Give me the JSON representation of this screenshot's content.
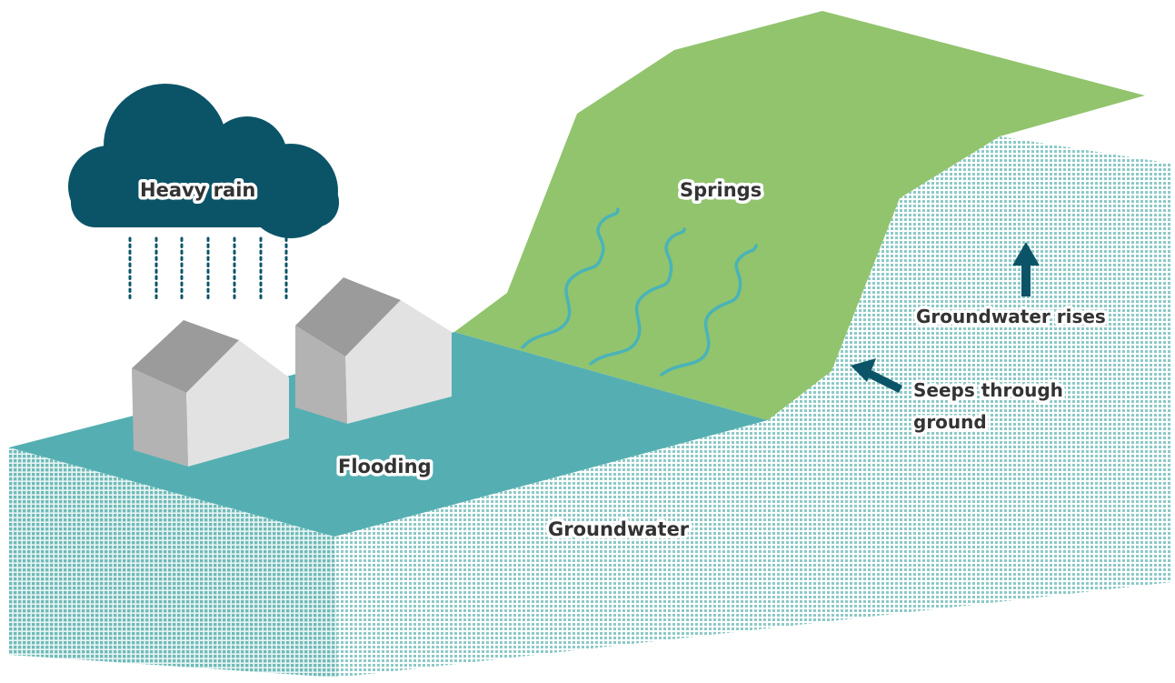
{
  "labels": {
    "heavy_rain": "Heavy rain",
    "springs": "Springs",
    "flooding": "Flooding",
    "groundwater": "Groundwater",
    "groundwater_rises": "Groundwater rises",
    "seeps_line1": "Seeps through",
    "seeps_line2": "ground"
  },
  "colors": {
    "cloud": "#0b5468",
    "rain": "#0b5468",
    "flood_water": "#55afb2",
    "hillside": "#91c46d",
    "groundwater": "#9fd1cf",
    "spring_lines": "#4ab3b8",
    "house_roof": "#9b9b9b",
    "house_wall_light": "#e0e0e0",
    "house_wall_dark": "#b0b0b0",
    "arrow": "#0b5468",
    "text": "#333333"
  },
  "icons": {
    "cloud": "rain-cloud-icon",
    "house": "house-icon",
    "arrow": "arrow-icon"
  }
}
